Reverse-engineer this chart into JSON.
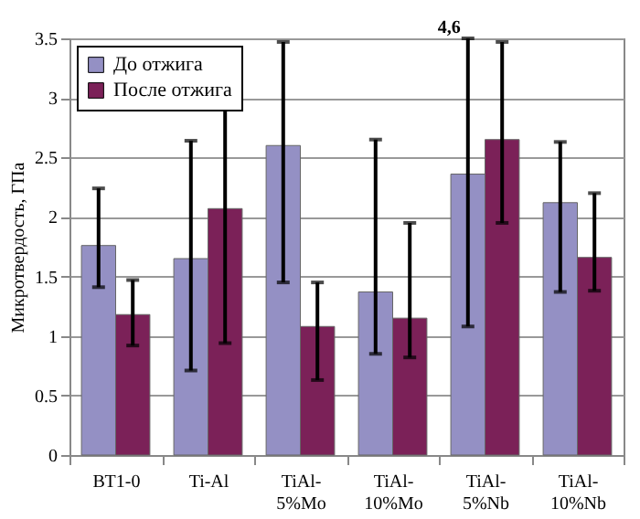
{
  "chart_data": {
    "type": "bar",
    "ylabel": "Микротвердость, ГПа",
    "categories": [
      "ВТ1-0",
      "Ti-Al",
      "TiAl-\n5%Mo",
      "TiAl-\n10%Mo",
      "TiAl-\n5%Nb",
      "TiAl-\n10%Nb"
    ],
    "series": [
      {
        "name": "До отжига",
        "color": "#9490c4",
        "values": [
          1.76,
          1.65,
          2.6,
          1.37,
          2.36,
          2.12
        ],
        "errors": [
          [
            1.41,
            2.24
          ],
          [
            0.71,
            2.64
          ],
          [
            1.45,
            3.47
          ],
          [
            0.85,
            2.65
          ],
          [
            1.08,
            3.5
          ],
          [
            1.37,
            2.63
          ]
        ]
      },
      {
        "name": "После отжига",
        "color": "#7b2158",
        "values": [
          1.18,
          2.07,
          1.08,
          1.15,
          2.65,
          1.66
        ],
        "errors": [
          [
            0.92,
            1.47
          ],
          [
            0.94,
            3.09
          ],
          [
            0.63,
            1.45
          ],
          [
            0.82,
            1.95
          ],
          [
            1.95,
            3.47
          ],
          [
            1.38,
            2.2
          ]
        ]
      }
    ],
    "annotations": [
      "4,6"
    ],
    "ylim": [
      0,
      3.5
    ],
    "yticks": [
      0,
      0.5,
      1,
      1.5,
      2,
      2.5,
      3,
      3.5
    ],
    "grid": "y",
    "legend": "top left"
  }
}
